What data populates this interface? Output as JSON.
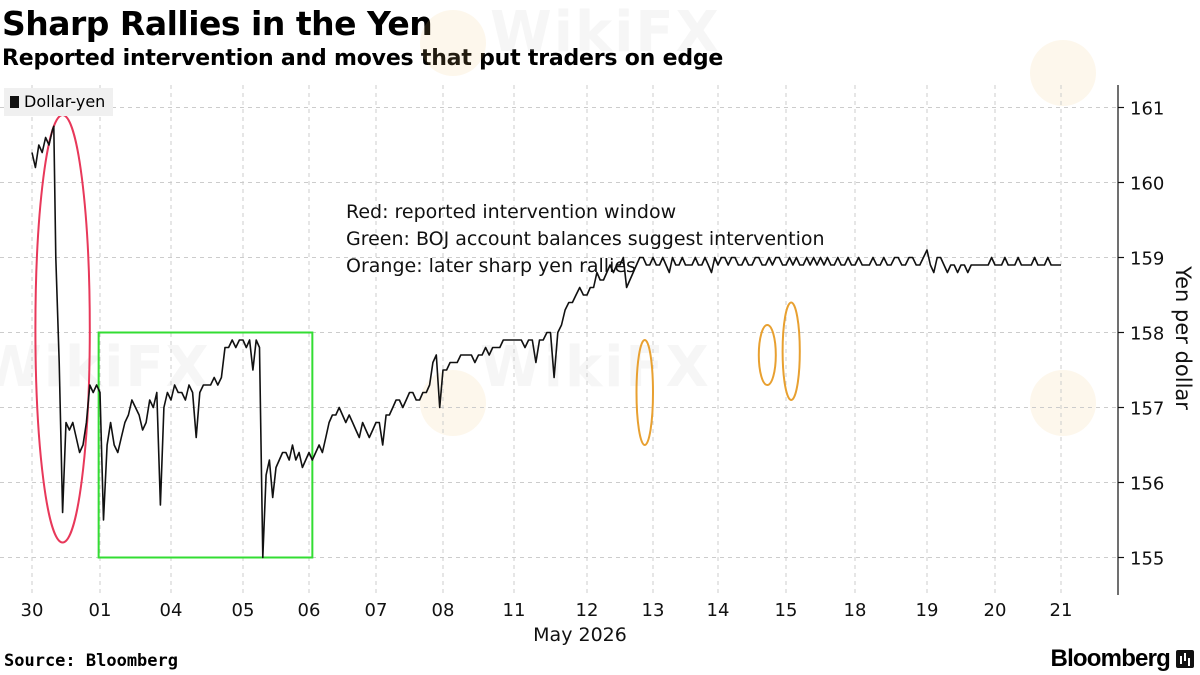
{
  "header": {
    "title": "Sharp Rallies in the Yen",
    "subtitle": "Reported intervention and moves that put traders on edge"
  },
  "legend": {
    "label": "Dollar-yen"
  },
  "annotation": {
    "lines": [
      "Red: reported intervention window",
      "Green: BOJ account balances suggest intervention",
      "Orange: later sharp yen rallies"
    ]
  },
  "footer": {
    "source": "Source: Bloomberg",
    "brand": "Bloomberg"
  },
  "watermark": {
    "text": "WikiFX"
  },
  "colors": {
    "line": "#111111",
    "red": "#e8385a",
    "green": "#33dd33",
    "orange": "#e8a030",
    "grid": "#cccccc",
    "axis": "#111111"
  },
  "chart_data": {
    "type": "line",
    "title": "Sharp Rallies in the Yen",
    "subtitle": "Reported intervention and moves that put traders on edge",
    "xlabel": "May 2026",
    "ylabel": "Yen per dollar",
    "categories": [
      "30",
      "01",
      "04",
      "05",
      "06",
      "07",
      "08",
      "11",
      "12",
      "13",
      "14",
      "15",
      "18",
      "19",
      "20",
      "21"
    ],
    "ylim": [
      154.5,
      161.3
    ],
    "yticks": [
      155,
      156,
      157,
      158,
      159,
      160,
      161
    ],
    "grid": true,
    "legend_position": "top-left",
    "series": [
      {
        "name": "Dollar-yen",
        "x": [
          0,
          0.05,
          0.1,
          0.15,
          0.2,
          0.25,
          0.3,
          0.32,
          0.35,
          0.4,
          0.45,
          0.5,
          0.55,
          0.6,
          0.65,
          0.7,
          0.75,
          0.8,
          0.85,
          0.9,
          0.95,
          1.0,
          1.05,
          1.1,
          1.15,
          1.2,
          1.25,
          1.3,
          1.35,
          1.4,
          1.45,
          1.5,
          1.55,
          1.6,
          1.65,
          1.7,
          1.75,
          1.8,
          1.85,
          1.9,
          1.95,
          2.0,
          2.05,
          2.1,
          2.15,
          2.2,
          2.25,
          2.3,
          2.35,
          2.4,
          2.45,
          2.5,
          2.55,
          2.6,
          2.65,
          2.7,
          2.75,
          2.8,
          2.85,
          2.9,
          2.95,
          3.0,
          3.05,
          3.1,
          3.15,
          3.2,
          3.25,
          3.3,
          3.35,
          3.4,
          3.45,
          3.5,
          3.55,
          3.6,
          3.65,
          3.7,
          3.75,
          3.8,
          3.85,
          3.9,
          3.95,
          4.0,
          4.05,
          4.1,
          4.15,
          4.2,
          4.25,
          4.3,
          4.35,
          4.4,
          4.45,
          4.5,
          4.55,
          4.6,
          4.65,
          4.7,
          4.75,
          4.8,
          4.85,
          4.9,
          4.95,
          5.0,
          5.05,
          5.1,
          5.15,
          5.2,
          5.25,
          5.3,
          5.35,
          5.4,
          5.45,
          5.5,
          5.55,
          5.6,
          5.65,
          5.7,
          5.75,
          5.8,
          5.85,
          5.9,
          5.95,
          6.0,
          6.05,
          6.1,
          6.15,
          6.2,
          6.25,
          6.3,
          6.35,
          6.4,
          6.45,
          6.5,
          6.55,
          6.6,
          6.65,
          6.7,
          6.75,
          6.8,
          6.85,
          6.9,
          6.95,
          7.0,
          7.05,
          7.1,
          7.15,
          7.2,
          7.25,
          7.3,
          7.35,
          7.4,
          7.45,
          7.5,
          7.55,
          7.6,
          7.65,
          7.7,
          7.75,
          7.8,
          7.85,
          7.9,
          7.95,
          8.0,
          8.05,
          8.1,
          8.15,
          8.2,
          8.25,
          8.3,
          8.35,
          8.4,
          8.45,
          8.5,
          8.55,
          8.6,
          8.65,
          8.7,
          8.75,
          8.8,
          8.85,
          8.9,
          8.95,
          9.0,
          9.05,
          9.1,
          9.15,
          9.2,
          9.25,
          9.3,
          9.35,
          9.4,
          9.45,
          9.5,
          9.55,
          9.6,
          9.65,
          9.7,
          9.75,
          9.8,
          9.85,
          9.9,
          9.95,
          10.0,
          10.05,
          10.1,
          10.15,
          10.2,
          10.25,
          10.3,
          10.35,
          10.4,
          10.45,
          10.5,
          10.55,
          10.6,
          10.65,
          10.7,
          10.75,
          10.8,
          10.85,
          10.9,
          10.95,
          11.0,
          11.05,
          11.1,
          11.15,
          11.2,
          11.25,
          11.3,
          11.35,
          11.4,
          11.45,
          11.5,
          11.55,
          11.6,
          11.65,
          11.7,
          11.75,
          11.8,
          11.85,
          11.9,
          11.95,
          12.0,
          12.05,
          12.1,
          12.15,
          12.2,
          12.25,
          12.3,
          12.35,
          12.4,
          12.45,
          12.5,
          12.55,
          12.6,
          12.65,
          12.7,
          12.75,
          12.8,
          12.85,
          12.9,
          12.95,
          13.0,
          13.05,
          13.1,
          13.15,
          13.2,
          13.25,
          13.3,
          13.35,
          13.4,
          13.45,
          13.5,
          13.55,
          13.6,
          13.65,
          13.7,
          13.75,
          13.8,
          13.85,
          13.9,
          13.95,
          14.0,
          14.05,
          14.1,
          14.15,
          14.2,
          14.25,
          14.3,
          14.35,
          14.4,
          14.45,
          14.5,
          14.55,
          14.6,
          14.65,
          14.7,
          14.75,
          14.8,
          14.85,
          14.9,
          14.95,
          15.0
        ],
        "values": [
          160.4,
          160.2,
          160.5,
          160.4,
          160.6,
          160.5,
          160.7,
          160.75,
          159.0,
          157.6,
          155.6,
          156.8,
          156.7,
          156.8,
          156.6,
          156.4,
          156.5,
          156.8,
          157.3,
          157.2,
          157.3,
          157.2,
          155.5,
          156.5,
          156.8,
          156.5,
          156.4,
          156.6,
          156.8,
          156.9,
          157.1,
          157.0,
          156.9,
          156.7,
          156.8,
          157.1,
          157.0,
          157.2,
          155.7,
          157.0,
          157.2,
          157.1,
          157.3,
          157.2,
          157.2,
          157.1,
          157.3,
          157.2,
          156.6,
          157.2,
          157.3,
          157.3,
          157.3,
          157.4,
          157.3,
          157.4,
          157.8,
          157.8,
          157.9,
          157.8,
          157.9,
          157.9,
          157.8,
          157.9,
          157.5,
          157.9,
          157.8,
          155.0,
          156.1,
          156.3,
          155.8,
          156.2,
          156.3,
          156.4,
          156.4,
          156.3,
          156.5,
          156.3,
          156.4,
          156.2,
          156.3,
          156.4,
          156.3,
          156.4,
          156.5,
          156.4,
          156.6,
          156.8,
          156.9,
          156.9,
          157.0,
          156.9,
          156.8,
          156.9,
          156.8,
          156.7,
          156.6,
          156.8,
          156.7,
          156.6,
          156.7,
          156.8,
          156.8,
          156.5,
          156.9,
          156.9,
          157.0,
          157.1,
          157.1,
          157.0,
          157.1,
          157.2,
          157.2,
          157.1,
          157.1,
          157.2,
          157.2,
          157.3,
          157.6,
          157.7,
          157.0,
          157.5,
          157.5,
          157.6,
          157.6,
          157.6,
          157.7,
          157.7,
          157.7,
          157.7,
          157.6,
          157.7,
          157.7,
          157.8,
          157.7,
          157.8,
          157.8,
          157.8,
          157.9,
          157.9,
          157.9,
          157.9,
          157.9,
          157.9,
          157.8,
          157.9,
          157.9,
          157.6,
          157.9,
          157.9,
          158.0,
          158.0,
          157.4,
          158.0,
          158.1,
          158.3,
          158.4,
          158.4,
          158.5,
          158.6,
          158.5,
          158.5,
          158.6,
          158.6,
          158.8,
          158.7,
          158.7,
          158.8,
          158.9,
          158.8,
          158.9,
          158.9,
          159.0,
          158.6,
          158.7,
          158.8,
          158.9,
          159.0,
          159.0,
          158.9,
          158.9,
          159.0,
          158.9,
          158.9,
          159.0,
          158.9,
          158.8,
          159.0,
          158.9,
          158.9,
          159.0,
          158.9,
          158.9,
          158.9,
          159.0,
          158.9,
          158.9,
          159.0,
          158.9,
          158.8,
          159.0,
          158.9,
          159.0,
          159.0,
          158.9,
          159.0,
          159.0,
          158.9,
          158.9,
          159.0,
          158.9,
          158.9,
          159.0,
          159.0,
          158.9,
          158.9,
          159.0,
          158.9,
          159.0,
          159.0,
          158.9,
          158.9,
          159.0,
          158.9,
          159.0,
          158.9,
          158.9,
          159.0,
          158.9,
          159.0,
          158.9,
          159.0,
          158.9,
          159.0,
          158.9,
          158.9,
          159.0,
          158.9,
          158.9,
          159.0,
          158.9,
          158.9,
          159.0,
          158.9,
          158.9,
          158.9,
          159.0,
          158.9,
          158.9,
          159.0,
          158.9,
          158.9,
          159.0,
          159.0,
          158.9,
          158.9,
          159.0,
          159.0,
          158.9,
          158.9,
          159.0,
          159.1,
          158.9,
          158.8,
          159.0,
          159.0,
          158.9,
          158.8,
          158.9,
          158.9,
          158.8,
          158.9,
          158.9,
          158.8,
          158.9,
          158.9,
          158.9,
          158.9,
          158.9,
          158.9,
          159.0,
          158.9,
          158.9,
          158.9,
          159.0,
          158.9,
          158.9,
          158.9,
          159.0,
          158.9,
          158.9,
          158.9,
          158.9,
          159.0,
          158.9,
          158.9,
          158.9,
          159.0,
          158.9,
          158.9,
          158.9,
          158.9
        ]
      }
    ],
    "highlights": [
      {
        "kind": "ellipse",
        "color": "red",
        "x_range": [
          0.05,
          0.85
        ],
        "y_range": [
          155.2,
          160.9
        ]
      },
      {
        "kind": "rect",
        "color": "green",
        "x_range": [
          0.98,
          4.05
        ],
        "y_range": [
          155.0,
          158.0
        ]
      },
      {
        "kind": "ellipse",
        "color": "orange",
        "x_range": [
          8.75,
          9.0
        ],
        "y_range": [
          156.5,
          157.9
        ]
      },
      {
        "kind": "ellipse",
        "color": "orange",
        "x_range": [
          10.6,
          10.85
        ],
        "y_range": [
          157.3,
          158.1
        ]
      },
      {
        "kind": "ellipse",
        "color": "orange",
        "x_range": [
          10.95,
          11.2
        ],
        "y_range": [
          157.1,
          158.4
        ]
      }
    ]
  }
}
